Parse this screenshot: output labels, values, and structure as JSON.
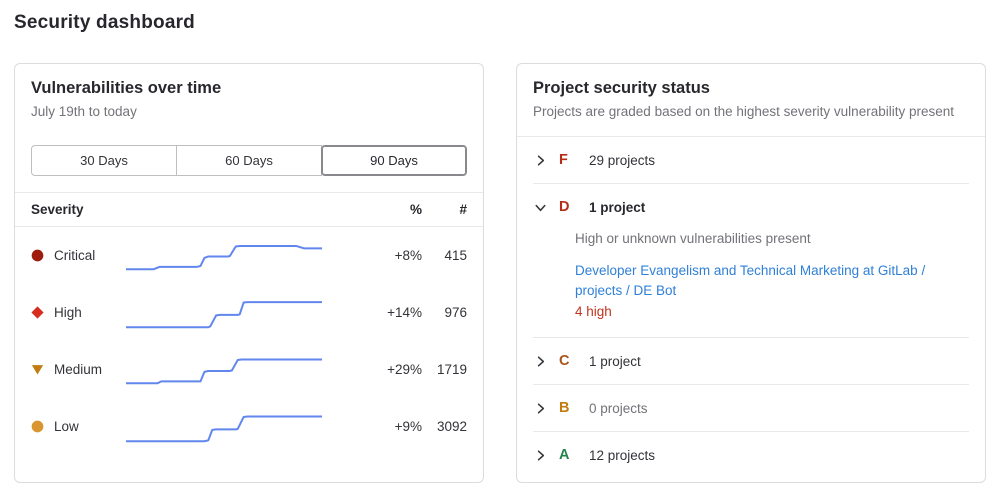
{
  "page": {
    "title": "Security dashboard"
  },
  "colors": {
    "sparkline": "#6187ee",
    "link": "#2f80d8",
    "danger_text": "#c0341d",
    "card_border": "#dcdcde",
    "muted_text": "#737278"
  },
  "vulnerabilities_panel": {
    "title": "Vulnerabilities over time",
    "subtitle": "July 19th to today",
    "range_buttons": [
      {
        "label": "30 Days",
        "selected": false
      },
      {
        "label": "60 Days",
        "selected": false
      },
      {
        "label": "90 Days",
        "selected": true
      }
    ],
    "table": {
      "headers": {
        "severity": "Severity",
        "percent": "%",
        "count": "#"
      },
      "rows": [
        {
          "severity": "Critical",
          "icon": "severity-critical-icon",
          "shape": "circle",
          "color": "#9e1b0d",
          "percent": "+8%",
          "count": "415",
          "sparkline": "0,34 14,34 17,31.5 36,31.5 38,30.5 40,22 42,20.5 52,20.5 53,20 56,10 58,9.5 87,9.5 91,12 100,12"
        },
        {
          "severity": "High",
          "icon": "severity-high-icon",
          "shape": "diamond",
          "color": "#d62d1e",
          "percent": "+14%",
          "count": "976",
          "sparkline": "0,35 42,35 43,34 46,22.5 48,22 57,22 58,21.5 60,9 62,8.5 100,8.5"
        },
        {
          "severity": "Medium",
          "icon": "severity-medium-icon",
          "shape": "triangle-down",
          "color": "#c17d10",
          "percent": "+29%",
          "count": "1719",
          "sparkline": "0,34 16,34 18,32 38,32 40,22 42,21 53,21 54,20.5 57,9.5 59,9 100,9"
        },
        {
          "severity": "Low",
          "icon": "severity-low-icon",
          "shape": "circle",
          "color": "#d99530",
          "percent": "+9%",
          "count": "3092",
          "sparkline": "0,35 40,35 42,34 44,23 46,22.5 56,22.5 57,22 60,9.5 62,9 100,9"
        }
      ]
    }
  },
  "project_status_panel": {
    "title": "Project security status",
    "subtitle": "Projects are graded based on the highest severity vulnerability present",
    "grades": [
      {
        "letter": "F",
        "color": "#b42e16",
        "count_label": "29 projects",
        "expanded": false,
        "muted": false
      },
      {
        "letter": "D",
        "color": "#b42e16",
        "count_label": "1 project",
        "expanded": true,
        "muted": false,
        "details": {
          "description": "High or unknown vulnerabilities present",
          "project_link": "Developer Evangelism and Technical Marketing at GitLab / projects / DE Bot",
          "vulnerability_summary": "4 high"
        }
      },
      {
        "letter": "C",
        "color": "#ab5215",
        "count_label": "1 project",
        "expanded": false,
        "muted": false
      },
      {
        "letter": "B",
        "color": "#c17d10",
        "count_label": "0 projects",
        "expanded": false,
        "muted": true
      },
      {
        "letter": "A",
        "color": "#24844e",
        "count_label": "12 projects",
        "expanded": false,
        "muted": false
      }
    ]
  }
}
